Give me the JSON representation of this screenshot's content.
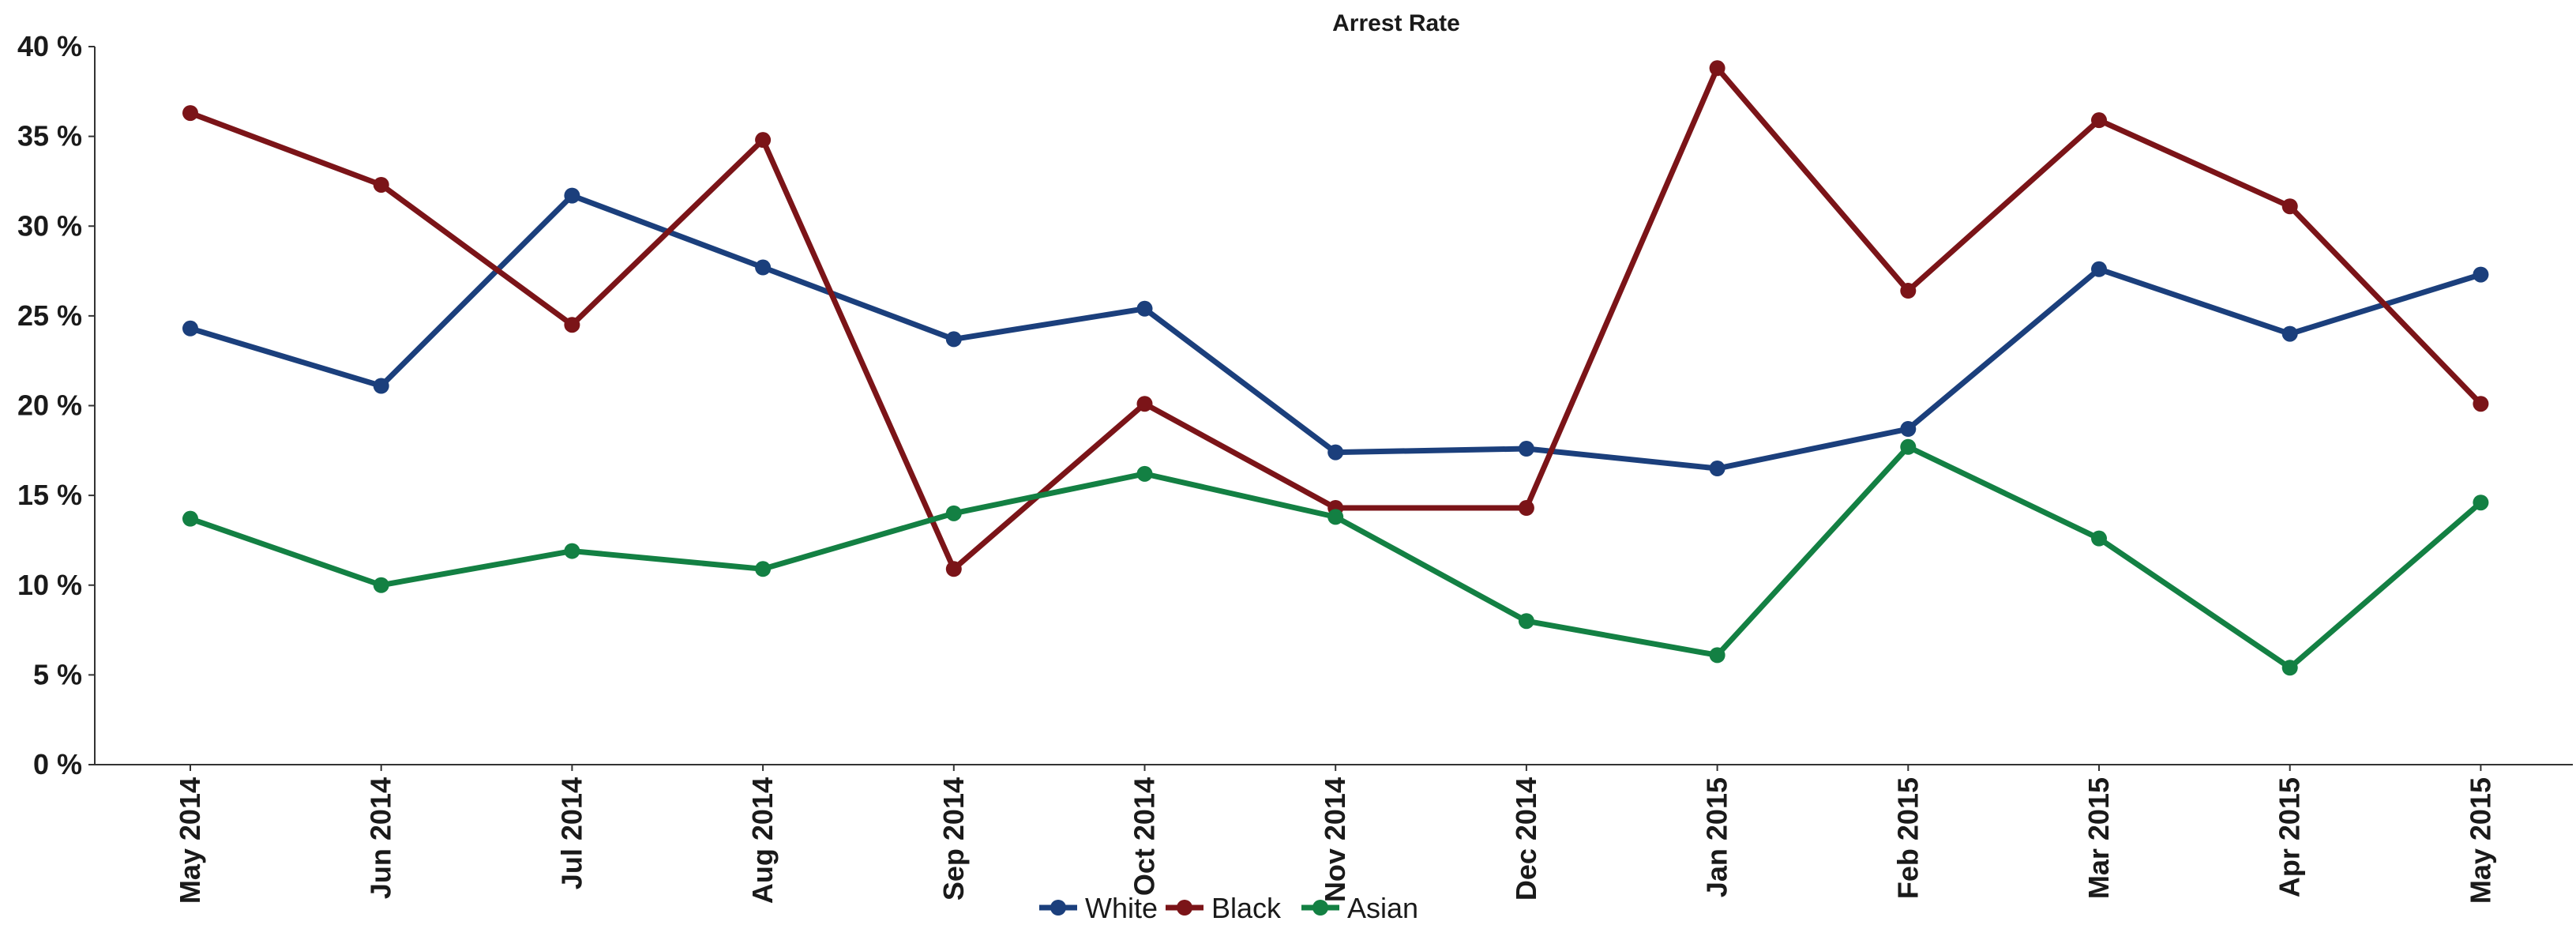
{
  "chart_data": {
    "type": "line",
    "title": "Arrest Rate",
    "xlabel": "",
    "ylabel": "",
    "categories": [
      "May 2014",
      "Jun 2014",
      "Jul 2014",
      "Aug 2014",
      "Sep 2014",
      "Oct 2014",
      "Nov 2014",
      "Dec 2014",
      "Jan 2015",
      "Feb 2015",
      "Mar 2015",
      "Apr 2015",
      "May 2015"
    ],
    "ylim": [
      0,
      40
    ],
    "yticks": [
      0,
      5,
      10,
      15,
      20,
      25,
      30,
      35,
      40
    ],
    "ytick_labels": [
      "0 %",
      "5 %",
      "10 %",
      "15 %",
      "20 %",
      "25 %",
      "30 %",
      "35 %",
      "40 %"
    ],
    "grid": false,
    "legend_position": "bottom-center",
    "series": [
      {
        "name": "White",
        "color": "#1b3f7c",
        "values": [
          24.3,
          21.1,
          31.7,
          27.7,
          23.7,
          25.4,
          17.4,
          17.6,
          16.5,
          18.7,
          27.6,
          24.0,
          27.3
        ]
      },
      {
        "name": "Black",
        "color": "#7b1418",
        "values": [
          36.3,
          32.3,
          24.5,
          34.8,
          10.9,
          20.1,
          14.3,
          14.3,
          38.8,
          26.4,
          35.9,
          31.1,
          20.1
        ]
      },
      {
        "name": "Asian",
        "color": "#138043",
        "values": [
          13.7,
          10.0,
          11.9,
          10.9,
          14.0,
          16.2,
          13.8,
          8.0,
          6.1,
          17.7,
          12.6,
          5.4,
          14.6
        ]
      }
    ]
  }
}
